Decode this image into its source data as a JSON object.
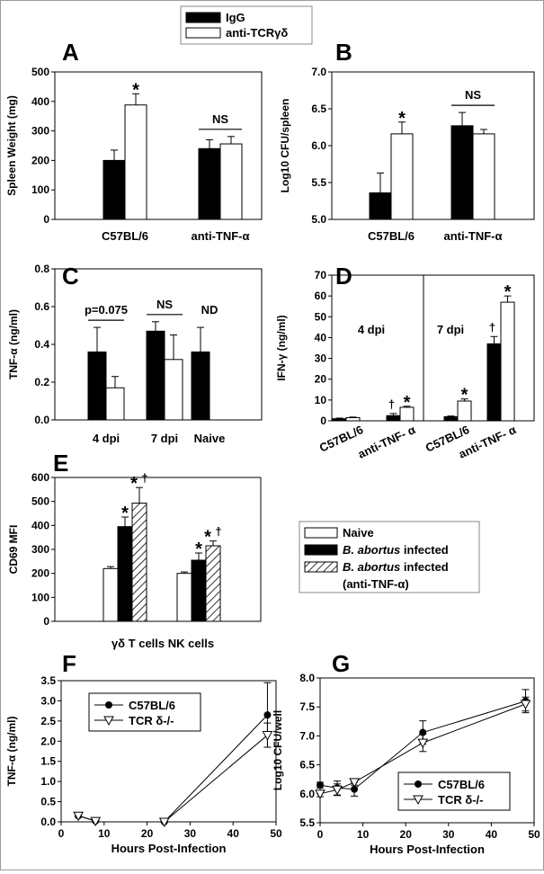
{
  "legend_top": [
    {
      "label": "IgG",
      "fill": "#000000"
    },
    {
      "label": "anti-TCRγδ",
      "fill": "#ffffff"
    }
  ],
  "legend_E": [
    {
      "label": "Naive",
      "fill": "#ffffff",
      "hatch": false
    },
    {
      "label_italic": "B. abortus",
      "label_rest": " infected",
      "fill": "#000000",
      "hatch": false
    },
    {
      "label_italic": "B. abortus",
      "label_rest": " infected",
      "label_line2": "(anti-TNF-α)",
      "fill": "#ffffff",
      "hatch": true
    }
  ],
  "chart_data": [
    {
      "panel": "A",
      "type": "bar",
      "ylabel": "Spleen Weight (mg)",
      "ylim": [
        0,
        500
      ],
      "yticks": [
        "0",
        "100",
        "200",
        "300",
        "400",
        "500"
      ],
      "categories": [
        "C57BL/6",
        "anti-TNF-α"
      ],
      "series": [
        {
          "name": "IgG",
          "values": [
            200,
            240
          ],
          "errors": [
            35,
            30
          ]
        },
        {
          "name": "anti-TCRγδ",
          "values": [
            388,
            256
          ],
          "errors": [
            38,
            25
          ]
        }
      ],
      "annotations": [
        {
          "text": "*",
          "category": 0,
          "series": 1
        },
        {
          "text": "NS",
          "category": 1,
          "line": true
        }
      ]
    },
    {
      "panel": "B",
      "type": "bar",
      "ylabel": "Log10 CFU/spleen",
      "ylim": [
        5.0,
        7.0
      ],
      "yticks": [
        "5.0",
        "5.5",
        "6.0",
        "6.5",
        "7.0"
      ],
      "categories": [
        "C57BL/6",
        "anti-TNF-α"
      ],
      "series": [
        {
          "name": "IgG",
          "values": [
            5.36,
            6.27
          ],
          "errors": [
            0.27,
            0.18
          ]
        },
        {
          "name": "anti-TCRγδ",
          "values": [
            6.16,
            6.16
          ],
          "errors": [
            0.16,
            0.06
          ]
        }
      ],
      "annotations": [
        {
          "text": "*",
          "category": 0,
          "series": 1
        },
        {
          "text": "NS",
          "category": 1,
          "line": true
        }
      ]
    },
    {
      "panel": "C",
      "type": "bar",
      "ylabel": "TNF-α (ng/ml)",
      "ylim": [
        0,
        0.8
      ],
      "yticks": [
        "0.0",
        "0.2",
        "0.4",
        "0.6",
        "0.8"
      ],
      "categories": [
        "4 dpi",
        "7 dpi",
        "Naive"
      ],
      "series": [
        {
          "name": "IgG",
          "values": [
            0.36,
            0.47,
            0.36
          ],
          "errors": [
            0.13,
            0.05,
            0.13
          ]
        },
        {
          "name": "anti-TCRγδ",
          "values": [
            0.17,
            0.32,
            null
          ],
          "errors": [
            0.06,
            0.13,
            null
          ]
        }
      ],
      "annotations": [
        {
          "text": "p=0.075",
          "category": 0,
          "line": true
        },
        {
          "text": "NS",
          "category": 1,
          "line": true
        },
        {
          "text": "ND",
          "category": 2,
          "line": false
        }
      ]
    },
    {
      "panel": "D",
      "type": "bar",
      "ylabel": "IFN-γ (ng/ml)",
      "ylim": [
        0,
        70
      ],
      "yticks": [
        "0",
        "10",
        "20",
        "30",
        "40",
        "50",
        "60",
        "70"
      ],
      "groups": [
        "4 dpi",
        "7 dpi"
      ],
      "categories": [
        "C57BL/6",
        "anti-TNF- α",
        "C57BL/6",
        "anti-TNF- α"
      ],
      "series": [
        {
          "name": "IgG",
          "values": [
            1.0,
            2.5,
            2.0,
            37.0
          ],
          "errors": [
            0.3,
            1.0,
            0.3,
            3.5
          ]
        },
        {
          "name": "anti-TCRγδ",
          "values": [
            1.5,
            6.5,
            9.5,
            57.0
          ],
          "errors": [
            0.3,
            0.5,
            1.0,
            3.0
          ]
        }
      ],
      "annotations": [
        {
          "text": "†",
          "category": 1,
          "series": 0
        },
        {
          "text": "*",
          "category": 1,
          "series": 1
        },
        {
          "text": "*",
          "category": 2,
          "series": 1
        },
        {
          "text": "†",
          "category": 3,
          "series": 0
        },
        {
          "text": "*",
          "category": 3,
          "series": 1
        }
      ]
    },
    {
      "panel": "E",
      "type": "bar",
      "ylabel": "CD69 MFI",
      "ylim": [
        0,
        600
      ],
      "yticks": [
        "0",
        "100",
        "200",
        "300",
        "400",
        "500",
        "600"
      ],
      "categories": [
        "γδ T cells",
        "NK cells"
      ],
      "series": [
        {
          "name": "Naive",
          "values": [
            220,
            200
          ],
          "errors": [
            8,
            6
          ]
        },
        {
          "name": "B. abortus infected",
          "values": [
            395,
            255
          ],
          "errors": [
            40,
            30
          ]
        },
        {
          "name": "B. abortus infected (anti-TNF-α)",
          "values": [
            493,
            315
          ],
          "errors": [
            65,
            20
          ]
        }
      ],
      "annotations": [
        {
          "text": "*",
          "category": 0,
          "series": 1
        },
        {
          "text": "*",
          "category": 0,
          "series": 2
        },
        {
          "text": "†",
          "category": 0,
          "series": 2
        },
        {
          "text": "*",
          "category": 1,
          "series": 1
        },
        {
          "text": "*",
          "category": 1,
          "series": 2
        },
        {
          "text": "†",
          "category": 1,
          "series": 2
        }
      ]
    },
    {
      "panel": "F",
      "type": "line",
      "xlabel": "Hours Post-Infection",
      "ylabel": "TNF-α (ng/ml)",
      "xlim": [
        0,
        50
      ],
      "xticks": [
        "0",
        "10",
        "20",
        "30",
        "40",
        "50"
      ],
      "ylim": [
        0,
        3.5
      ],
      "yticks": [
        "0.0",
        "0.5",
        "1.0",
        "1.5",
        "2.0",
        "2.5",
        "3.0",
        "3.5"
      ],
      "segments": [
        [
          0,
          1
        ],
        [
          2,
          3
        ]
      ],
      "series": [
        {
          "name": "C57BL/6",
          "marker": "circle",
          "x": [
            4,
            8,
            24,
            48
          ],
          "y": [
            0.15,
            0.02,
            0.0,
            2.65
          ],
          "errors": [
            0.03,
            0.01,
            0.01,
            0.8
          ]
        },
        {
          "name": "TCR δ-/-",
          "marker": "triangle",
          "x": [
            4,
            8,
            24,
            48
          ],
          "y": [
            0.15,
            0.02,
            0.0,
            2.15
          ],
          "errors": [
            0.03,
            0.01,
            0.01,
            0.3
          ]
        }
      ]
    },
    {
      "panel": "G",
      "type": "line",
      "xlabel": "Hours Post-Infection",
      "ylabel": "Log10 CFU/well",
      "xlim": [
        0,
        50
      ],
      "xticks": [
        "0",
        "10",
        "20",
        "30",
        "40",
        "50"
      ],
      "ylim": [
        5.5,
        8.0
      ],
      "yticks": [
        "5.5",
        "6.0",
        "6.5",
        "7.0",
        "7.5",
        "8.0"
      ],
      "segments": [
        [
          0,
          1,
          2,
          3,
          4
        ]
      ],
      "series": [
        {
          "name": "C57BL/6",
          "marker": "circle",
          "x": [
            0,
            4,
            8,
            24,
            48
          ],
          "y": [
            6.15,
            6.1,
            6.08,
            7.06,
            7.6
          ],
          "errors": [
            0.05,
            0.12,
            0.12,
            0.2,
            0.2
          ]
        },
        {
          "name": "TCR δ-/-",
          "marker": "triangle",
          "x": [
            0,
            4,
            8,
            24,
            48
          ],
          "y": [
            6.0,
            6.07,
            6.2,
            6.88,
            7.55
          ],
          "errors": [
            0.05,
            0.1,
            0.05,
            0.15,
            0.12
          ]
        }
      ]
    }
  ]
}
